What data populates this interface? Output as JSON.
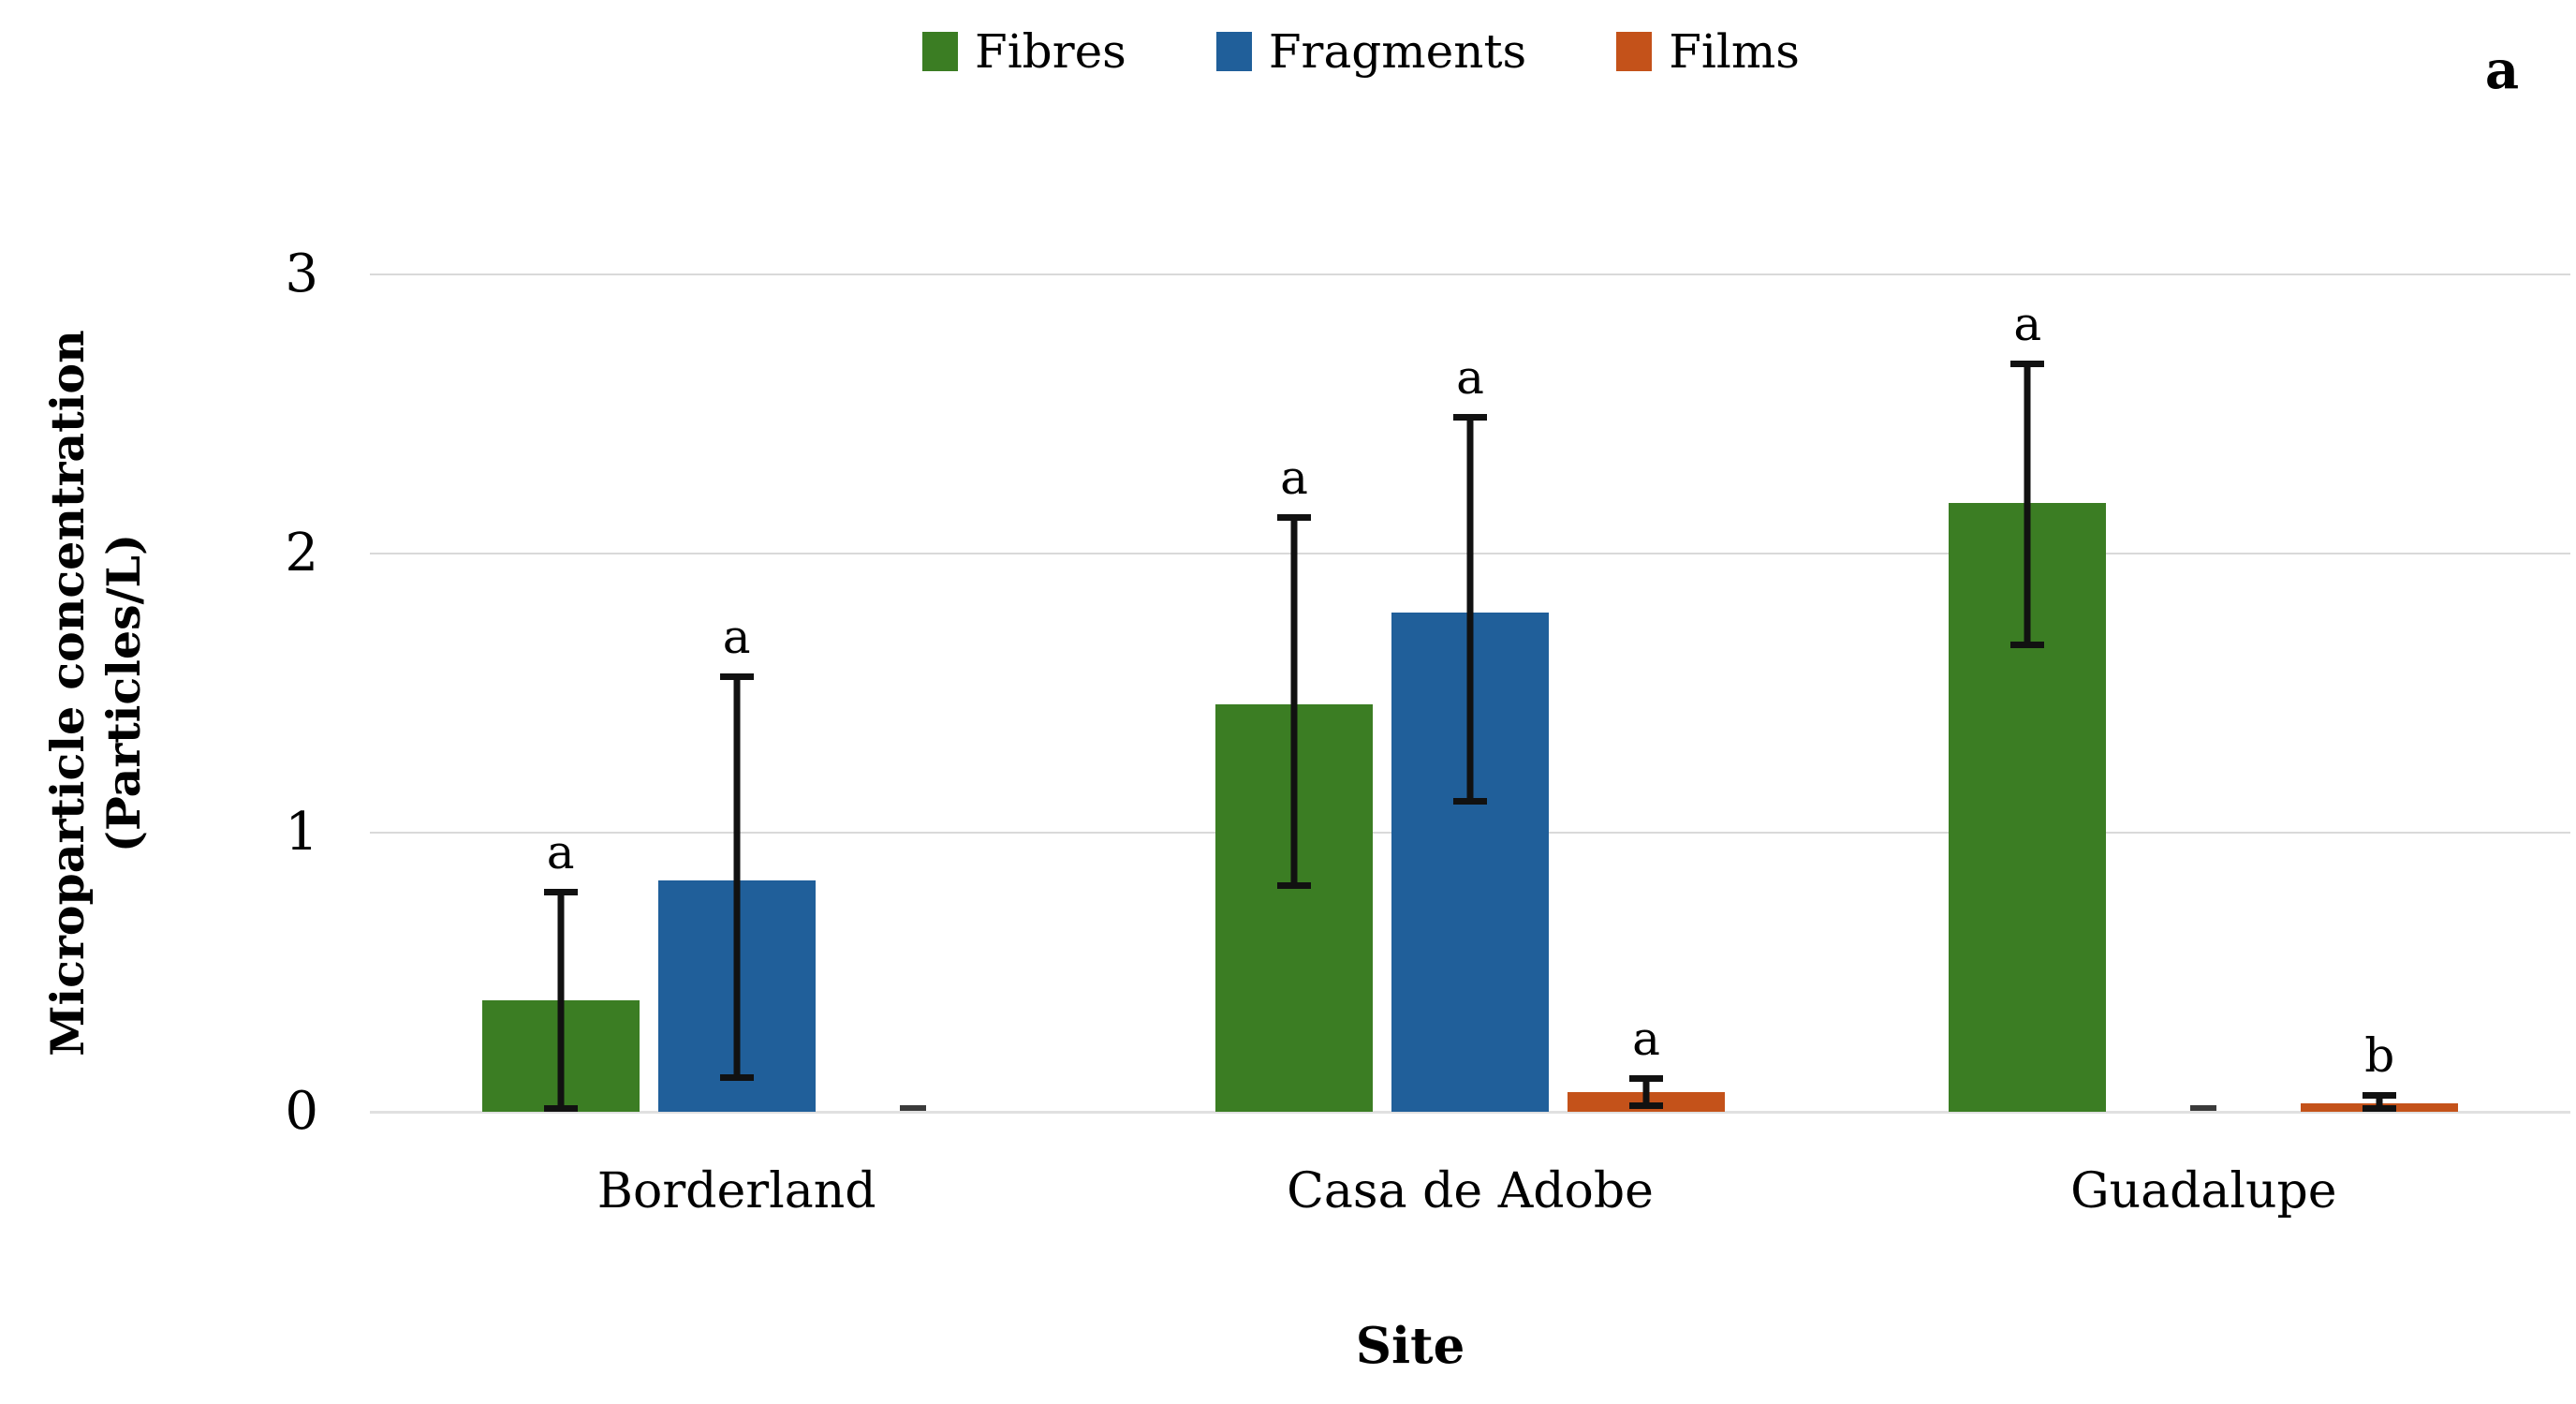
{
  "panel_label": "a",
  "chart_data": {
    "type": "bar",
    "title": "",
    "xlabel": "Site",
    "ylabel_lines": [
      "Microparticle concentration",
      "(Particles/L)"
    ],
    "ylim": [
      0,
      3
    ],
    "yticks": [
      "0",
      "1",
      "2",
      "3"
    ],
    "grid": "horizontal",
    "legend_position": "top-center",
    "categories": [
      "Borderland",
      "Casa de Adobe",
      "Guadalupe"
    ],
    "series": [
      {
        "name": "Fibres",
        "color": "#3b7d23",
        "values": [
          0.4,
          1.46,
          2.18
        ],
        "err_low": [
          0.0,
          0.8,
          1.66
        ],
        "err_high": [
          0.8,
          2.14,
          2.69
        ],
        "letters": [
          "a",
          "a",
          "a"
        ]
      },
      {
        "name": "Fragments",
        "color": "#205f9a",
        "values": [
          0.83,
          1.79,
          0.005
        ],
        "err_low": [
          0.11,
          1.1,
          null
        ],
        "err_high": [
          1.57,
          2.5,
          null
        ],
        "letters": [
          "a",
          "a",
          null
        ]
      },
      {
        "name": "Films",
        "color": "#c4521a",
        "values": [
          0.005,
          0.07,
          0.03
        ],
        "err_low": [
          null,
          0.01,
          0.0
        ],
        "err_high": [
          null,
          0.13,
          0.07
        ],
        "letters": [
          null,
          "a",
          "b"
        ]
      }
    ],
    "near_zero_marker_color": "#3a3a3a",
    "gridline_color": "#d9d9d9"
  }
}
